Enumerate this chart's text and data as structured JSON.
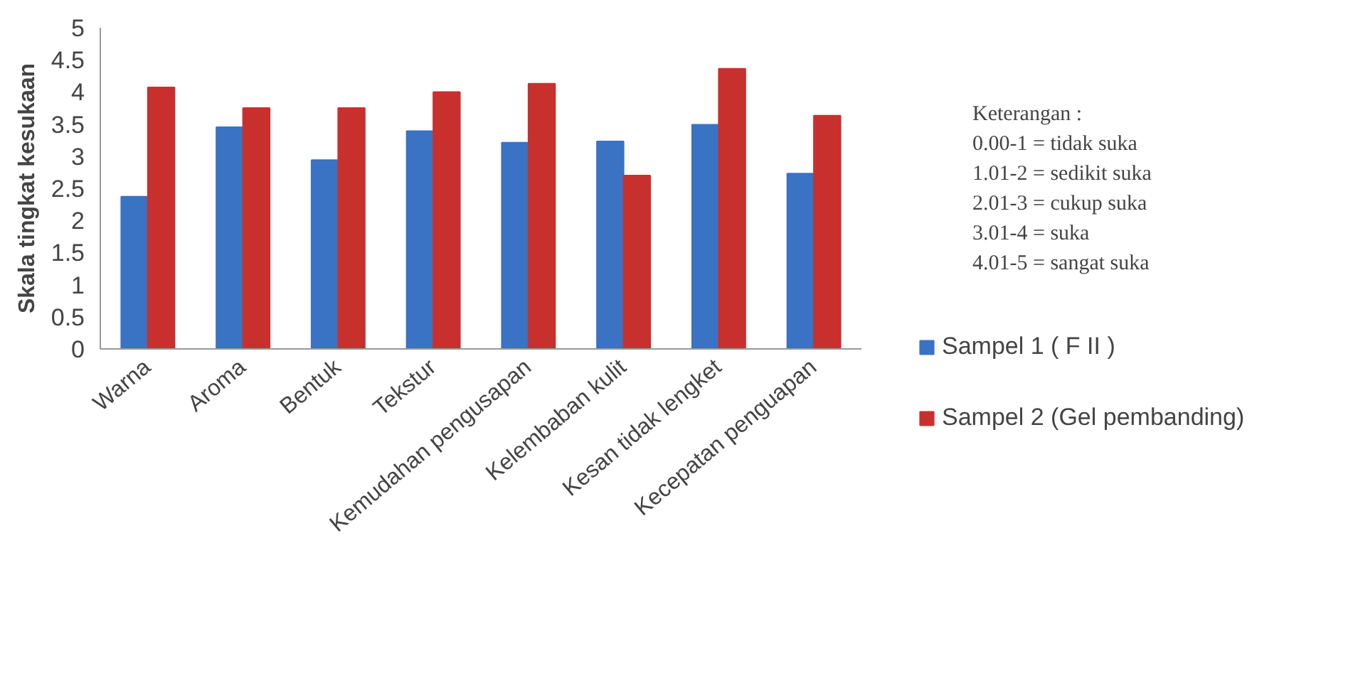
{
  "chart_data": {
    "type": "bar",
    "ylabel": "Skala tingkat kesukaan",
    "categories": [
      "Warna",
      "Aroma",
      "Bentuk",
      "Tekstur",
      "Kemudahan pengusapan",
      "Kelembaban kulit",
      "Kesan tidak lengket",
      "Kecepatan penguapan"
    ],
    "series": [
      {
        "name": "Sampel 1 ( F II )",
        "color": "#3a72c4",
        "values": [
          2.37,
          3.45,
          2.94,
          3.39,
          3.21,
          3.23,
          3.49,
          2.73
        ]
      },
      {
        "name": "Sampel 2 (Gel pembanding)",
        "color": "#c8302e",
        "values": [
          4.07,
          3.75,
          3.75,
          4.0,
          4.13,
          2.7,
          4.36,
          3.63
        ]
      }
    ],
    "ylim": [
      0,
      5
    ],
    "yticks": [
      0,
      0.5,
      1,
      1.5,
      2,
      2.5,
      3,
      3.5,
      4,
      4.5,
      5
    ],
    "grid": false,
    "legend": "right",
    "annotations": [
      "Keterangan :",
      "0.00-1 = tidak suka",
      "1.01-2 = sedikit suka",
      "2.01-3 = cukup suka",
      "3.01-4 = suka",
      "4.01-5 = sangat suka"
    ]
  }
}
